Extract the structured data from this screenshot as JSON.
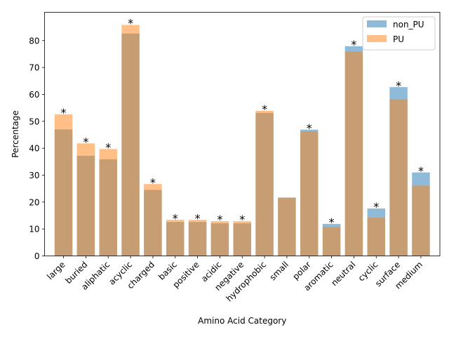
{
  "chart_data": {
    "type": "bar",
    "xlabel": "Amino Acid Category",
    "ylabel": "Percentage",
    "ylim": [
      0,
      90.5
    ],
    "yticks": [
      0,
      10,
      20,
      30,
      40,
      50,
      60,
      70,
      80
    ],
    "legend_position": "top-right",
    "categories": [
      "large",
      "buried",
      "aliphatic",
      "acyclic",
      "charged",
      "basic",
      "positive",
      "acidic",
      "negative",
      "hydrophobic",
      "small",
      "polar",
      "aromatic",
      "neutral",
      "cyclic",
      "surface",
      "medium"
    ],
    "series": [
      {
        "name": "non_PU",
        "color": "#1f77b4",
        "values": [
          47.0,
          37.2,
          35.9,
          82.6,
          24.5,
          12.6,
          12.6,
          12.1,
          12.1,
          53.1,
          21.7,
          46.9,
          11.9,
          77.9,
          17.6,
          62.7,
          31.0
        ]
      },
      {
        "name": "PU",
        "color": "#ff7f0e",
        "values": [
          52.6,
          41.8,
          39.7,
          85.8,
          26.7,
          13.4,
          13.4,
          12.9,
          12.9,
          53.9,
          21.5,
          46.3,
          10.8,
          75.9,
          14.2,
          58.2,
          26.1
        ]
      }
    ],
    "annotations": [
      "*",
      "*",
      "*",
      "*",
      "*",
      "*",
      "*",
      "*",
      "*",
      "*",
      "",
      "*",
      "*",
      "*",
      "*",
      "*",
      "*"
    ]
  }
}
